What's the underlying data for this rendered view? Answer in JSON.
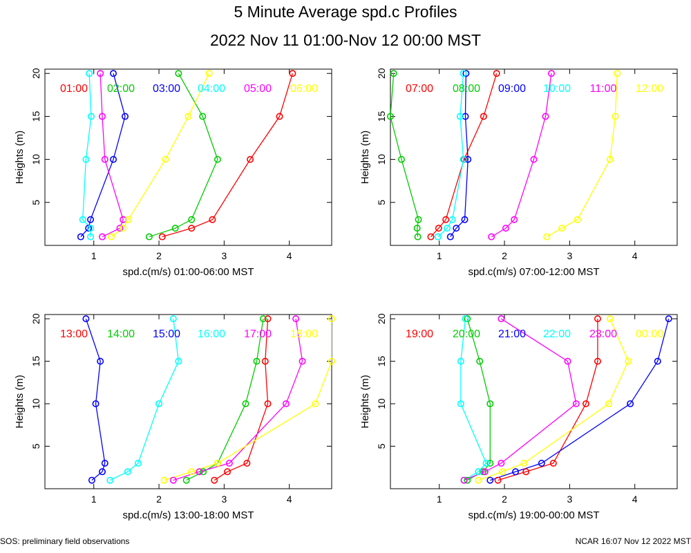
{
  "title": "5 Minute Average spd.c Profiles",
  "subtitle": "2022 Nov 11 01:00-Nov 12 00:00 MST",
  "footer_left": "SOS: preliminary field observations",
  "footer_right": "NCAR 16:07 Nov 12 2022 MST",
  "colors": [
    "#ff0000",
    "#00cc00",
    "#0000ff",
    "#00ffff",
    "#ff00ff",
    "#ffff00"
  ],
  "chart_data": [
    {
      "type": "line",
      "xlabel": "spd.c(m/s) 01:00-06:00 MST",
      "ylabel": "Heights (m)",
      "xlim": [
        0.25,
        4.65
      ],
      "ylim": [
        0,
        20.5
      ],
      "xticks": [
        1,
        2,
        3,
        4
      ],
      "yticks": [
        5,
        10,
        15,
        20
      ],
      "heights": [
        1,
        2,
        3,
        10,
        15,
        20
      ],
      "series": [
        {
          "name": "01:00",
          "values": [
            2.05,
            2.5,
            2.82,
            3.4,
            3.85,
            4.05
          ]
        },
        {
          "name": "02:00",
          "values": [
            1.85,
            2.25,
            2.5,
            2.9,
            2.67,
            2.3
          ]
        },
        {
          "name": "03:00",
          "values": [
            0.8,
            0.92,
            0.95,
            1.3,
            1.48,
            1.3
          ]
        },
        {
          "name": "04:00",
          "values": [
            0.95,
            0.95,
            0.83,
            0.88,
            0.96,
            0.93
          ]
        },
        {
          "name": "05:00",
          "values": [
            1.13,
            1.4,
            1.45,
            1.17,
            1.13,
            1.1
          ]
        },
        {
          "name": "06:00",
          "values": [
            1.27,
            1.45,
            1.53,
            2.1,
            2.45,
            2.77
          ]
        }
      ]
    },
    {
      "type": "line",
      "xlabel": "spd.c(m/s) 07:00-12:00 MST",
      "ylabel": "Heights (m)",
      "xlim": [
        0.25,
        4.65
      ],
      "ylim": [
        0,
        20.5
      ],
      "xticks": [
        1,
        2,
        3,
        4
      ],
      "yticks": [
        5,
        10,
        15,
        20
      ],
      "heights": [
        1,
        2,
        3,
        10,
        15,
        20
      ],
      "series": [
        {
          "name": "07:00",
          "values": [
            0.87,
            0.99,
            1.1,
            1.38,
            1.68,
            1.88
          ]
        },
        {
          "name": "08:00",
          "values": [
            0.67,
            0.66,
            0.68,
            0.42,
            0.25,
            0.3
          ]
        },
        {
          "name": "09:00",
          "values": [
            1.17,
            1.26,
            1.39,
            1.44,
            1.4,
            1.41
          ]
        },
        {
          "name": "10:00",
          "values": [
            0.98,
            1.12,
            1.2,
            1.37,
            1.32,
            1.37
          ]
        },
        {
          "name": "11:00",
          "values": [
            1.8,
            2.02,
            2.15,
            2.45,
            2.63,
            2.72
          ]
        },
        {
          "name": "12:00",
          "values": [
            2.65,
            2.88,
            3.12,
            3.62,
            3.7,
            3.73
          ]
        }
      ]
    },
    {
      "type": "line",
      "xlabel": "spd.c(m/s) 13:00-18:00 MST",
      "ylabel": "Heights (m)",
      "xlim": [
        0.25,
        4.65
      ],
      "ylim": [
        0,
        20.5
      ],
      "xticks": [
        1,
        2,
        3,
        4
      ],
      "yticks": [
        5,
        10,
        15,
        20
      ],
      "heights": [
        1,
        2,
        3,
        10,
        15,
        20
      ],
      "series": [
        {
          "name": "13:00",
          "values": [
            2.85,
            3.05,
            3.35,
            3.67,
            3.63,
            3.67
          ]
        },
        {
          "name": "14:00",
          "values": [
            2.42,
            2.68,
            2.9,
            3.33,
            3.5,
            3.6
          ]
        },
        {
          "name": "15:00",
          "values": [
            0.97,
            1.13,
            1.17,
            1.03,
            1.1,
            0.88
          ]
        },
        {
          "name": "16:00",
          "values": [
            1.25,
            1.52,
            1.68,
            2.0,
            2.3,
            2.22
          ]
        },
        {
          "name": "17:00",
          "values": [
            2.22,
            2.62,
            3.08,
            3.95,
            4.2,
            4.1
          ]
        },
        {
          "name": "18:00",
          "values": [
            2.08,
            2.5,
            2.9,
            4.4,
            4.65,
            4.65
          ]
        }
      ]
    },
    {
      "type": "line",
      "xlabel": "spd.c(m/s) 19:00-00:00 MST",
      "ylabel": "Heights (m)",
      "xlim": [
        0.25,
        4.65
      ],
      "ylim": [
        0,
        20.5
      ],
      "xticks": [
        1,
        2,
        3,
        4
      ],
      "yticks": [
        5,
        10,
        15,
        20
      ],
      "heights": [
        1,
        2,
        3,
        10,
        15,
        20
      ],
      "series": [
        {
          "name": "19:00",
          "values": [
            1.9,
            2.33,
            2.75,
            3.25,
            3.43,
            3.43
          ]
        },
        {
          "name": "20:00",
          "values": [
            1.43,
            1.67,
            1.78,
            1.78,
            1.62,
            1.43
          ]
        },
        {
          "name": "21:00",
          "values": [
            1.78,
            2.17,
            2.57,
            3.93,
            4.35,
            4.52
          ]
        },
        {
          "name": "22:00",
          "values": [
            1.38,
            1.6,
            1.72,
            1.33,
            1.33,
            1.4
          ]
        },
        {
          "name": "23:00",
          "values": [
            1.38,
            1.7,
            1.95,
            3.1,
            2.97,
            1.95
          ]
        },
        {
          "name": "00:00",
          "values": [
            1.6,
            1.97,
            2.3,
            3.6,
            3.9,
            3.62
          ]
        }
      ]
    }
  ]
}
